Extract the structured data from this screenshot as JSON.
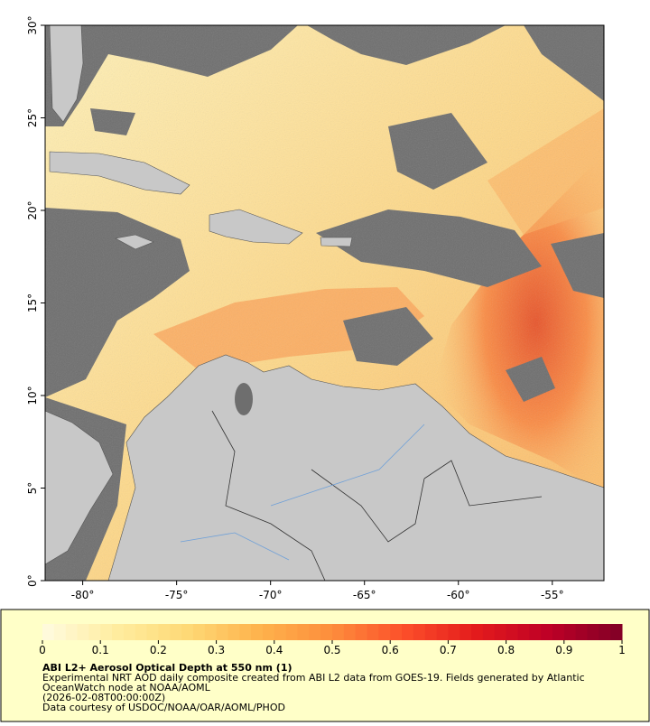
{
  "map": {
    "xlim": [
      -82,
      -52.25
    ],
    "ylim": [
      0,
      30
    ],
    "xticks": [
      {
        "value": -80,
        "label": "-80°"
      },
      {
        "value": -75,
        "label": "-75°"
      },
      {
        "value": -70,
        "label": "-70°"
      },
      {
        "value": -65,
        "label": "-65°"
      },
      {
        "value": -60,
        "label": "-60°"
      },
      {
        "value": -55,
        "label": "-55°"
      }
    ],
    "yticks": [
      {
        "value": 0,
        "label": "0°"
      },
      {
        "value": 5,
        "label": "5°"
      },
      {
        "value": 10,
        "label": "10°"
      },
      {
        "value": 15,
        "label": "15°"
      },
      {
        "value": 20,
        "label": "20°"
      },
      {
        "value": 25,
        "label": "25°"
      },
      {
        "value": 30,
        "label": "30°"
      }
    ]
  },
  "colorbar": {
    "lim": [
      0,
      1
    ],
    "ticks": [
      0,
      0.1,
      0.2,
      0.3,
      0.4,
      0.5,
      0.6,
      0.7,
      0.8,
      0.9,
      1
    ],
    "colormap": [
      "#fffbe0",
      "#ffeda0",
      "#fed976",
      "#feb24c",
      "#fd8d3c",
      "#fc4e2a",
      "#e31a1c",
      "#bd0026",
      "#800026"
    ],
    "steps": 50
  },
  "caption": {
    "title": "ABI L2+ Aerosol Optical Depth at 550 nm (1)",
    "lines": [
      "Experimental NRT AOD daily composite created from ABI L2 data from GOES-19. Fields generated by Atlantic",
      "OceanWatch node at NOAA/AOML",
      "(2026-02-08T00:00:00Z)",
      "Data courtesy of USDOC/NOAA/OAR/AOML/PHOD"
    ]
  }
}
